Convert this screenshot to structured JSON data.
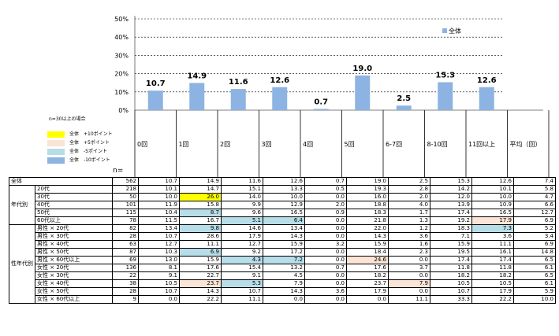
{
  "chart_data": {
    "type": "bar",
    "legend": "全体",
    "categories": [
      "0回",
      "1回",
      "2回",
      "3回",
      "4回",
      "5回",
      "6-7回",
      "8-10回",
      "11回以上"
    ],
    "values": [
      10.7,
      14.9,
      11.6,
      12.6,
      0.7,
      19.0,
      2.5,
      15.3,
      12.6
    ],
    "y_ticks": [
      "0%",
      "10%",
      "20%",
      "30%",
      "40%",
      "50%"
    ],
    "ylim": [
      0,
      50
    ],
    "grid": "dashed",
    "legend_position": "top-right",
    "bar_color": "#8db3e2"
  },
  "header_cols": [
    "0回",
    "1回",
    "2回",
    "3回",
    "4回",
    "5回",
    "6-7回",
    "8-10回",
    "11回以上",
    "平均（回）"
  ],
  "n_label": "n=",
  "legend": {
    "note": "n=30以上の場合",
    "items": [
      {
        "label": "全体　+10ポイント",
        "color": "#ffff00"
      },
      {
        "label": "全体　+5ポイント",
        "color": "#fbe4d5"
      },
      {
        "label": "全体　-5ポイント",
        "color": "#b7dde8"
      },
      {
        "label": "全体　-10ポイント",
        "color": "#8db3e2"
      }
    ]
  },
  "groups": {
    "age": "年代別",
    "gender_age": "性年代別"
  },
  "rows": [
    {
      "label": "全体",
      "n": "562",
      "values": [
        "10.7",
        "14.9",
        "11.6",
        "12.6",
        "0.7",
        "19.0",
        "2.5",
        "15.3",
        "12.6",
        "7.4"
      ],
      "hl": {}
    },
    {
      "label": "20代",
      "n": "218",
      "values": [
        "10.1",
        "14.7",
        "15.1",
        "13.3",
        "0.5",
        "19.3",
        "2.8",
        "14.2",
        "10.1",
        "5.8"
      ],
      "hl": {}
    },
    {
      "label": "30代",
      "n": "50",
      "values": [
        "10.0",
        "26.0",
        "14.0",
        "10.0",
        "0.0",
        "16.0",
        "2.0",
        "12.0",
        "10.0",
        "4.7"
      ],
      "hl": {
        "1": "#ffff00"
      }
    },
    {
      "label": "40代",
      "n": "101",
      "values": [
        "11.9",
        "15.8",
        "9.9",
        "12.9",
        "2.0",
        "18.8",
        "4.0",
        "13.9",
        "10.9",
        "6.6"
      ],
      "hl": {}
    },
    {
      "label": "50代",
      "n": "115",
      "values": [
        "10.4",
        "8.7",
        "9.6",
        "16.5",
        "0.9",
        "18.3",
        "1.7",
        "17.4",
        "16.5",
        "12.7"
      ],
      "hl": {
        "1": "#b7dde8"
      }
    },
    {
      "label": "60代以上",
      "n": "78",
      "values": [
        "11.5",
        "16.7",
        "5.1",
        "6.4",
        "0.0",
        "21.8",
        "1.3",
        "19.2",
        "17.9",
        "6.9"
      ],
      "hl": {
        "2": "#b7dde8",
        "3": "#b7dde8",
        "8": "#fbe4d5"
      }
    },
    {
      "label": "男性 × 20代",
      "n": "82",
      "values": [
        "13.4",
        "9.8",
        "14.6",
        "13.4",
        "0.0",
        "22.0",
        "1.2",
        "18.3",
        "7.3",
        "5.2"
      ],
      "hl": {
        "1": "#b7dde8",
        "8": "#b7dde8"
      }
    },
    {
      "label": "男性 × 30代",
      "n": "28",
      "values": [
        "10.7",
        "28.6",
        "17.9",
        "14.3",
        "0.0",
        "14.3",
        "3.6",
        "7.1",
        "3.6",
        "3.4"
      ],
      "hl": {}
    },
    {
      "label": "男性 × 40代",
      "n": "63",
      "values": [
        "12.7",
        "11.1",
        "12.7",
        "15.9",
        "3.2",
        "15.9",
        "1.6",
        "15.9",
        "11.1",
        "6.9"
      ],
      "hl": {}
    },
    {
      "label": "男性 × 50代",
      "n": "87",
      "values": [
        "10.3",
        "6.9",
        "9.2",
        "17.2",
        "0.0",
        "18.4",
        "2.3",
        "19.5",
        "16.1",
        "14.8"
      ],
      "hl": {
        "1": "#b7dde8"
      }
    },
    {
      "label": "男性 × 60代以上",
      "n": "69",
      "values": [
        "13.0",
        "15.9",
        "4.3",
        "7.2",
        "0.0",
        "24.6",
        "0.0",
        "17.4",
        "17.4",
        "6.5"
      ],
      "hl": {
        "2": "#b7dde8",
        "3": "#b7dde8",
        "5": "#fbe4d5"
      }
    },
    {
      "label": "女性 × 20代",
      "n": "136",
      "values": [
        "8.1",
        "17.6",
        "15.4",
        "13.2",
        "0.7",
        "17.6",
        "3.7",
        "11.8",
        "11.8",
        "6.1"
      ],
      "hl": {}
    },
    {
      "label": "女性 × 30代",
      "n": "22",
      "values": [
        "9.1",
        "22.7",
        "9.1",
        "4.5",
        "0.0",
        "18.2",
        "0.0",
        "18.2",
        "18.2",
        "6.5"
      ],
      "hl": {}
    },
    {
      "label": "女性 × 40代",
      "n": "38",
      "values": [
        "10.5",
        "23.7",
        "5.3",
        "7.9",
        "0.0",
        "23.7",
        "7.9",
        "10.5",
        "10.5",
        "6.1"
      ],
      "hl": {
        "1": "#fbe4d5",
        "2": "#b7dde8",
        "6": "#fbe4d5"
      }
    },
    {
      "label": "女性 × 50代",
      "n": "28",
      "values": [
        "10.7",
        "14.3",
        "10.7",
        "14.3",
        "3.6",
        "17.9",
        "0.0",
        "10.7",
        "17.9",
        "5.9"
      ],
      "hl": {}
    },
    {
      "label": "女性 × 60代以上",
      "n": "9",
      "values": [
        "0.0",
        "22.2",
        "11.1",
        "0.0",
        "0.0",
        "0.0",
        "11.1",
        "33.3",
        "22.2",
        "10.0"
      ],
      "hl": {}
    }
  ]
}
